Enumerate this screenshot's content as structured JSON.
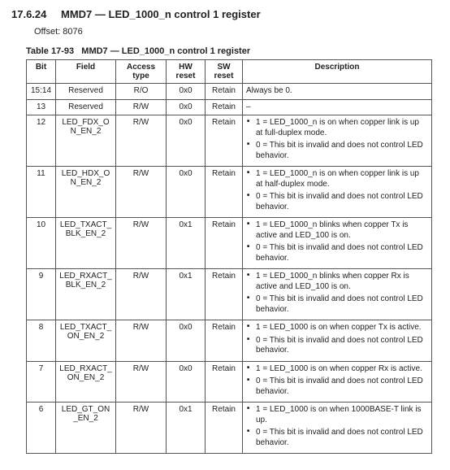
{
  "section": {
    "number": "17.6.24",
    "title": "MMD7 — LED_1000_n control 1 register"
  },
  "offset_label": "Offset:",
  "offset_value": "8076",
  "table": {
    "caption_prefix": "Table 17-93",
    "caption_title": "MMD7 — LED_1000_n control 1 register",
    "columns": [
      "Bit",
      "Field",
      "Access type",
      "HW reset",
      "SW reset",
      "Description"
    ],
    "rows": [
      {
        "bit": "15:14",
        "field": "Reserved",
        "access": "R/O",
        "hw": "0x0",
        "sw": "Retain",
        "desc_plain": "Always be 0."
      },
      {
        "bit": "13",
        "field": "Reserved",
        "access": "R/W",
        "hw": "0x0",
        "sw": "Retain",
        "desc_plain": "–"
      },
      {
        "bit": "12",
        "field": "LED_FDX_ON_EN_2",
        "access": "R/W",
        "hw": "0x0",
        "sw": "Retain",
        "desc_list": [
          "1 = LED_1000_n is on when copper link is up at full-duplex mode.",
          "0 = This bit is invalid and does not control LED behavior."
        ]
      },
      {
        "bit": "11",
        "field": "LED_HDX_ON_EN_2",
        "access": "R/W",
        "hw": "0x0",
        "sw": "Retain",
        "desc_list": [
          "1 = LED_1000_n is on when copper link is up at half-duplex mode.",
          "0 = This bit is invalid and does not control LED behavior."
        ]
      },
      {
        "bit": "10",
        "field": "LED_TXACT_BLK_EN_2",
        "access": "R/W",
        "hw": "0x1",
        "sw": "Retain",
        "desc_list": [
          "1 = LED_1000_n blinks when copper Tx is active and LED_100 is on.",
          "0 = This bit is invalid and does not control LED behavior."
        ]
      },
      {
        "bit": "9",
        "field": "LED_RXACT_BLK_EN_2",
        "access": "R/W",
        "hw": "0x1",
        "sw": "Retain",
        "desc_list": [
          "1 = LED_1000_n blinks when copper Rx is active and LED_100 is on.",
          "0 = This bit is invalid and does not control LED behavior."
        ]
      },
      {
        "bit": "8",
        "field": "LED_TXACT_ON_EN_2",
        "access": "R/W",
        "hw": "0x0",
        "sw": "Retain",
        "desc_list": [
          "1 = LED_1000 is on when copper Tx is active.",
          "0 = This bit is invalid and does not control LED behavior."
        ]
      },
      {
        "bit": "7",
        "field": "LED_RXACT_ON_EN_2",
        "access": "R/W",
        "hw": "0x0",
        "sw": "Retain",
        "desc_list": [
          "1 = LED_1000 is on when copper Rx is active.",
          "0 = This bit is invalid and does not control LED behavior."
        ]
      },
      {
        "bit": "6",
        "field": "LED_GT_ON_EN_2",
        "access": "R/W",
        "hw": "0x1",
        "sw": "Retain",
        "desc_list": [
          "1 = LED_1000 is on when 1000BASE-T link is up.",
          "0 = This bit is invalid and does not control LED behavior."
        ]
      }
    ]
  }
}
